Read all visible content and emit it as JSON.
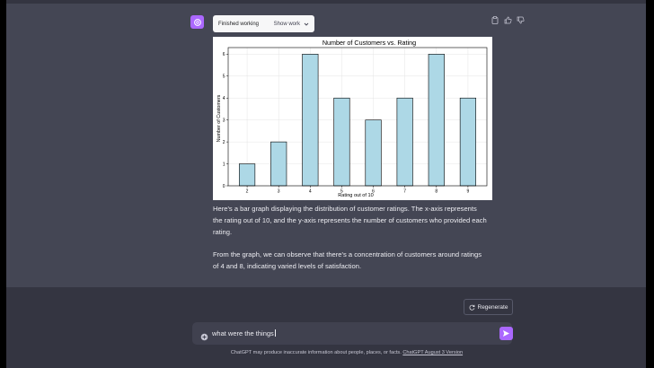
{
  "work_box": {
    "status": "Finished working",
    "toggle_label": "Show work"
  },
  "icons": {
    "avatar": "openai-logo-icon",
    "work_toggle": "chevron-down-icon",
    "actions": [
      "clipboard-icon",
      "thumbs-up-icon",
      "thumbs-down-icon"
    ],
    "regenerate": "refresh-icon",
    "attach": "plus-circle-icon",
    "send": "send-icon"
  },
  "colors": {
    "accent": "#ab68ff",
    "bar": "#add8e6"
  },
  "chart_data": {
    "type": "bar",
    "title": "Number of Customers vs. Rating",
    "xlabel": "Rating out of 10",
    "ylabel": "Number of Customers",
    "categories": [
      "2",
      "3",
      "4",
      "5",
      "6",
      "7",
      "8",
      "9"
    ],
    "values": [
      1,
      2,
      6,
      4,
      3,
      4,
      6,
      4
    ],
    "yticks": [
      "0",
      "1",
      "2",
      "3",
      "4",
      "5",
      "6"
    ],
    "ylim": [
      0,
      6.3
    ],
    "grid": true
  },
  "message": {
    "paragraph1": "Here's a bar graph displaying the distribution of customer ratings. The x-axis represents the rating out of 10, and the y-axis represents the number of customers who provided each rating.",
    "paragraph2": "From the graph, we can observe that there's a concentration of customers around ratings of 4 and 8, indicating varied levels of satisfaction."
  },
  "regenerate_label": "Regenerate",
  "input": {
    "value": "what were the things"
  },
  "footer": {
    "text": "ChatGPT may produce inaccurate information about people, places, or facts.",
    "link": "ChatGPT August 3 Version"
  }
}
